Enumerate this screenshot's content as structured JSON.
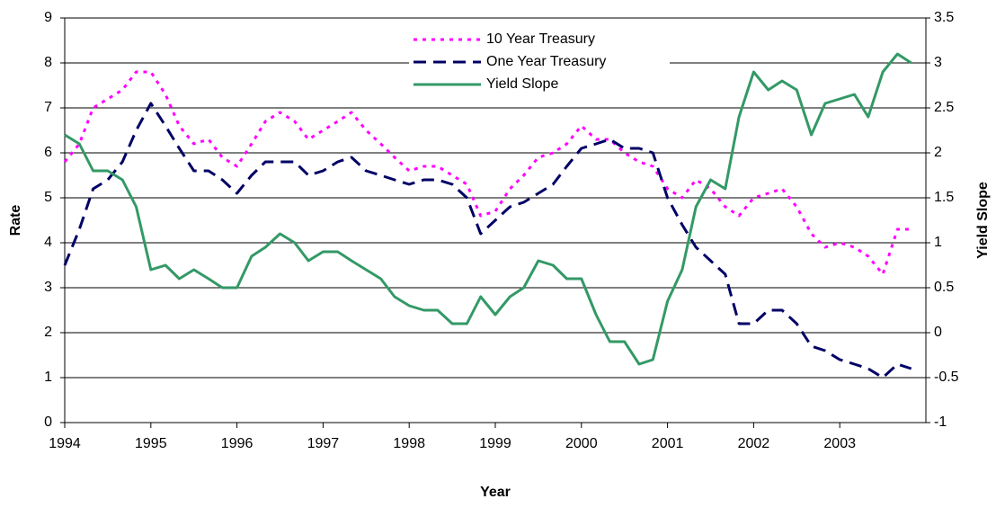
{
  "chart_data": {
    "type": "line",
    "x_label": "Year",
    "y_label": "Rate",
    "y2_label": "Yield Slope",
    "x": [
      1994,
      1994.17,
      1994.33,
      1994.5,
      1994.67,
      1994.83,
      1995,
      1995.17,
      1995.33,
      1995.5,
      1995.67,
      1995.83,
      1996,
      1996.17,
      1996.33,
      1996.5,
      1996.67,
      1996.83,
      1997,
      1997.17,
      1997.33,
      1997.5,
      1997.67,
      1997.83,
      1998,
      1998.17,
      1998.33,
      1998.5,
      1998.67,
      1998.83,
      1999,
      1999.17,
      1999.33,
      1999.5,
      1999.67,
      1999.83,
      2000,
      2000.17,
      2000.33,
      2000.5,
      2000.67,
      2000.83,
      2001,
      2001.17,
      2001.33,
      2001.5,
      2001.67,
      2001.83,
      2002,
      2002.17,
      2002.33,
      2002.5,
      2002.67,
      2002.83,
      2003,
      2003.17,
      2003.33,
      2003.5,
      2003.67,
      2003.83
    ],
    "series": [
      {
        "name": "10 Year Treasury",
        "color": "#ff00ff",
        "dash": "dotted",
        "axis": "y",
        "values": [
          5.8,
          6.2,
          7.0,
          7.2,
          7.4,
          7.8,
          7.8,
          7.3,
          6.6,
          6.2,
          6.3,
          5.9,
          5.7,
          6.2,
          6.7,
          6.9,
          6.7,
          6.3,
          6.5,
          6.7,
          6.9,
          6.5,
          6.2,
          5.9,
          5.6,
          5.7,
          5.7,
          5.5,
          5.3,
          4.6,
          4.7,
          5.2,
          5.5,
          5.9,
          6.0,
          6.2,
          6.6,
          6.3,
          6.3,
          6.0,
          5.8,
          5.7,
          5.2,
          5.0,
          5.4,
          5.2,
          4.8,
          4.6,
          5.0,
          5.1,
          5.2,
          4.8,
          4.2,
          3.9,
          4.0,
          3.9,
          3.7,
          3.3,
          4.3,
          4.3
        ]
      },
      {
        "name": "One Year Treasury",
        "color": "#000066",
        "dash": "dashed",
        "axis": "y",
        "values": [
          3.5,
          4.3,
          5.2,
          5.4,
          5.8,
          6.5,
          7.1,
          6.6,
          6.1,
          5.6,
          5.6,
          5.4,
          5.1,
          5.5,
          5.8,
          5.8,
          5.8,
          5.5,
          5.6,
          5.8,
          5.9,
          5.6,
          5.5,
          5.4,
          5.3,
          5.4,
          5.4,
          5.3,
          5.0,
          4.2,
          4.5,
          4.8,
          4.9,
          5.1,
          5.3,
          5.7,
          6.1,
          6.2,
          6.3,
          6.1,
          6.1,
          6.0,
          5.0,
          4.4,
          3.9,
          3.6,
          3.3,
          2.2,
          2.2,
          2.5,
          2.5,
          2.2,
          1.7,
          1.6,
          1.4,
          1.3,
          1.2,
          1.0,
          1.3,
          1.2
        ]
      },
      {
        "name": "Yield Slope",
        "color": "#339966",
        "dash": "solid",
        "axis": "y2",
        "values": [
          2.2,
          2.1,
          1.8,
          1.8,
          1.7,
          1.4,
          0.7,
          0.75,
          0.6,
          0.7,
          0.6,
          0.5,
          0.5,
          0.85,
          0.95,
          1.1,
          1.0,
          0.8,
          0.9,
          0.9,
          0.8,
          0.7,
          0.6,
          0.4,
          0.3,
          0.25,
          0.25,
          0.1,
          0.1,
          0.4,
          0.2,
          0.4,
          0.5,
          0.8,
          0.75,
          0.6,
          0.6,
          0.2,
          -0.1,
          -0.1,
          -0.35,
          -0.3,
          0.35,
          0.7,
          1.4,
          1.7,
          1.6,
          2.4,
          2.9,
          2.7,
          2.8,
          2.7,
          2.2,
          2.55,
          2.6,
          2.65,
          2.4,
          2.9,
          3.1,
          3.0
        ]
      }
    ],
    "xlim": [
      1994,
      2004
    ],
    "xticks": [
      1994,
      1995,
      1996,
      1997,
      1998,
      1999,
      2000,
      2001,
      2002,
      2003
    ],
    "ylim": [
      0,
      9
    ],
    "yticks": [
      0,
      1,
      2,
      3,
      4,
      5,
      6,
      7,
      8,
      9
    ],
    "y2lim": [
      -1,
      3.5
    ],
    "y2ticks": [
      -1,
      -0.5,
      0,
      0.5,
      1,
      1.5,
      2,
      2.5,
      3,
      3.5
    ],
    "grid": true,
    "legend": "top"
  }
}
